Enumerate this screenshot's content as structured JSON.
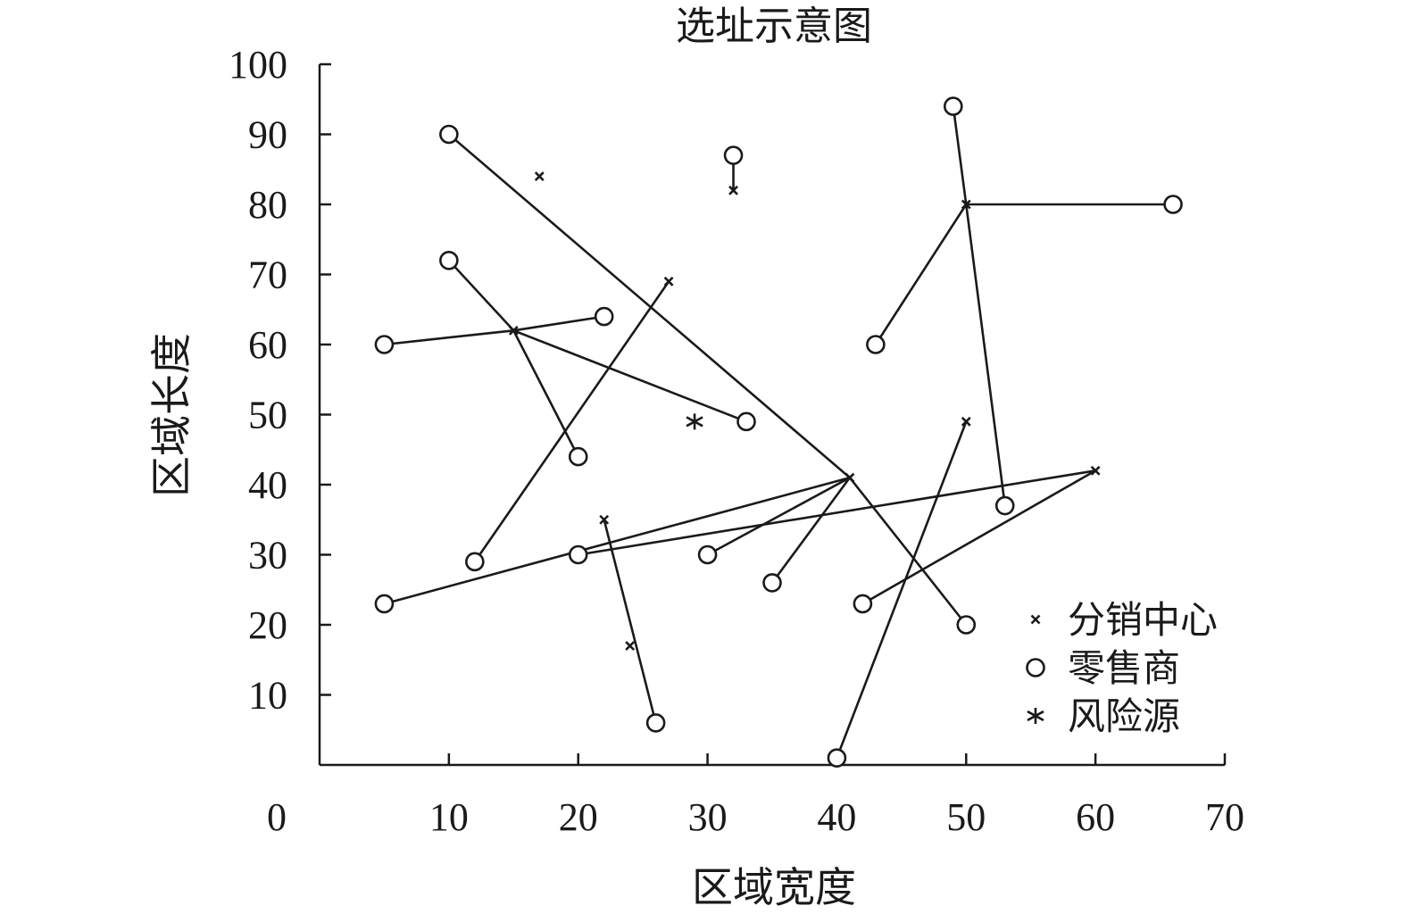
{
  "chart_data": {
    "type": "scatter",
    "title": "选址示意图",
    "xlabel": "区域宽度",
    "ylabel": "区域长度",
    "xlim": [
      0,
      70
    ],
    "ylim": [
      0,
      100
    ],
    "x_ticks": [
      0,
      10,
      20,
      30,
      40,
      50,
      60,
      70
    ],
    "y_ticks": [
      10,
      20,
      30,
      40,
      50,
      60,
      70,
      80,
      90,
      100
    ],
    "grid": false,
    "legend_position": "bottom-right",
    "series": [
      {
        "name": "分销中心",
        "marker": "x",
        "points": [
          {
            "x": 17,
            "y": 84
          },
          {
            "x": 32,
            "y": 82
          },
          {
            "x": 27,
            "y": 69
          },
          {
            "x": 15,
            "y": 62
          },
          {
            "x": 41,
            "y": 41
          },
          {
            "x": 50,
            "y": 80
          },
          {
            "x": 50,
            "y": 49
          },
          {
            "x": 60,
            "y": 42
          },
          {
            "x": 22,
            "y": 35
          },
          {
            "x": 24,
            "y": 17
          }
        ]
      },
      {
        "name": "零售商",
        "marker": "circle",
        "points": [
          {
            "x": 10,
            "y": 90
          },
          {
            "x": 32,
            "y": 87
          },
          {
            "x": 10,
            "y": 72
          },
          {
            "x": 5,
            "y": 60
          },
          {
            "x": 22,
            "y": 64
          },
          {
            "x": 33,
            "y": 49
          },
          {
            "x": 20,
            "y": 44
          },
          {
            "x": 12,
            "y": 29
          },
          {
            "x": 20,
            "y": 30
          },
          {
            "x": 5,
            "y": 23
          },
          {
            "x": 30,
            "y": 30
          },
          {
            "x": 35,
            "y": 26
          },
          {
            "x": 26,
            "y": 6
          },
          {
            "x": 40,
            "y": 1
          },
          {
            "x": 42,
            "y": 23
          },
          {
            "x": 50,
            "y": 20
          },
          {
            "x": 53,
            "y": 37
          },
          {
            "x": 49,
            "y": 94
          },
          {
            "x": 43,
            "y": 60
          },
          {
            "x": 66,
            "y": 80
          }
        ]
      },
      {
        "name": "风险源",
        "marker": "asterisk",
        "points": [
          {
            "x": 29,
            "y": 49
          }
        ]
      }
    ],
    "links": [
      {
        "from": [
          10,
          90
        ],
        "to": [
          41,
          41
        ]
      },
      {
        "from": [
          41,
          41
        ],
        "to": [
          50,
          20
        ]
      },
      {
        "from": [
          41,
          41
        ],
        "to": [
          30,
          30
        ]
      },
      {
        "from": [
          41,
          41
        ],
        "to": [
          35,
          26
        ]
      },
      {
        "from": [
          41,
          41
        ],
        "to": [
          5,
          23
        ]
      },
      {
        "from": [
          32,
          87
        ],
        "to": [
          32,
          82
        ]
      },
      {
        "from": [
          10,
          72
        ],
        "to": [
          15,
          62
        ]
      },
      {
        "from": [
          15,
          62
        ],
        "to": [
          20,
          44
        ]
      },
      {
        "from": [
          5,
          60
        ],
        "to": [
          15,
          62
        ]
      },
      {
        "from": [
          15,
          62
        ],
        "to": [
          22,
          64
        ]
      },
      {
        "from": [
          15,
          62
        ],
        "to": [
          33,
          49
        ]
      },
      {
        "from": [
          12,
          29
        ],
        "to": [
          27,
          69
        ]
      },
      {
        "from": [
          20,
          30
        ],
        "to": [
          60,
          42
        ]
      },
      {
        "from": [
          42,
          23
        ],
        "to": [
          60,
          42
        ]
      },
      {
        "from": [
          22,
          35
        ],
        "to": [
          26,
          6
        ]
      },
      {
        "from": [
          40,
          1
        ],
        "to": [
          50,
          49
        ]
      },
      {
        "from": [
          49,
          94
        ],
        "to": [
          50,
          80
        ]
      },
      {
        "from": [
          50,
          80
        ],
        "to": [
          53,
          37
        ]
      },
      {
        "from": [
          50,
          80
        ],
        "to": [
          43,
          60
        ]
      },
      {
        "from": [
          50,
          80
        ],
        "to": [
          66,
          80
        ]
      }
    ]
  }
}
